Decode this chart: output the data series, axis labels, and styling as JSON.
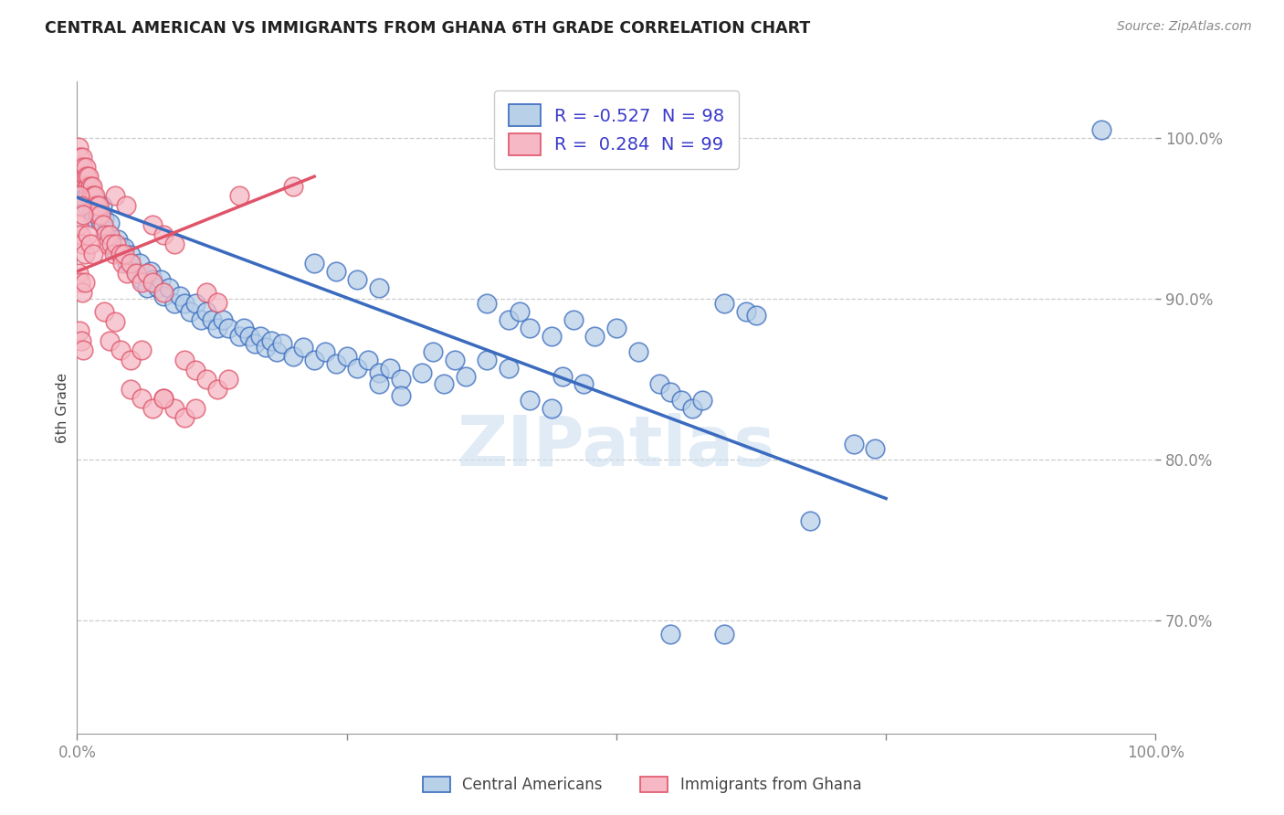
{
  "title": "CENTRAL AMERICAN VS IMMIGRANTS FROM GHANA 6TH GRADE CORRELATION CHART",
  "source": "Source: ZipAtlas.com",
  "ylabel": "6th Grade",
  "xmin": 0.0,
  "xmax": 1.0,
  "ymin": 0.63,
  "ymax": 1.035,
  "yticks": [
    0.7,
    0.8,
    0.9,
    1.0
  ],
  "ytick_labels": [
    "70.0%",
    "80.0%",
    "90.0%",
    "100.0%"
  ],
  "xticks": [
    0.0,
    0.25,
    0.5,
    0.75,
    1.0
  ],
  "xtick_labels": [
    "0.0%",
    "",
    "",
    "",
    "100.0%"
  ],
  "legend_r_blue": "-0.527",
  "legend_n_blue": "98",
  "legend_r_pink": "0.284",
  "legend_n_pink": "99",
  "blue_color": "#b8d0e8",
  "pink_color": "#f5b8c4",
  "trendline_blue": "#3a6bbf",
  "trendline_pink": "#e0546a",
  "watermark": "ZIPatlas",
  "blue_scatter": [
    [
      0.002,
      0.978
    ],
    [
      0.004,
      0.972
    ],
    [
      0.005,
      0.968
    ],
    [
      0.007,
      0.963
    ],
    [
      0.009,
      0.958
    ],
    [
      0.01,
      0.965
    ],
    [
      0.012,
      0.96
    ],
    [
      0.014,
      0.955
    ],
    [
      0.015,
      0.95
    ],
    [
      0.017,
      0.962
    ],
    [
      0.018,
      0.957
    ],
    [
      0.02,
      0.952
    ],
    [
      0.022,
      0.948
    ],
    [
      0.023,
      0.958
    ],
    [
      0.025,
      0.95
    ],
    [
      0.028,
      0.942
    ],
    [
      0.03,
      0.947
    ],
    [
      0.032,
      0.937
    ],
    [
      0.035,
      0.93
    ],
    [
      0.038,
      0.937
    ],
    [
      0.04,
      0.932
    ],
    [
      0.042,
      0.927
    ],
    [
      0.044,
      0.932
    ],
    [
      0.046,
      0.922
    ],
    [
      0.05,
      0.927
    ],
    [
      0.055,
      0.917
    ],
    [
      0.058,
      0.922
    ],
    [
      0.06,
      0.912
    ],
    [
      0.065,
      0.907
    ],
    [
      0.068,
      0.917
    ],
    [
      0.07,
      0.912
    ],
    [
      0.075,
      0.907
    ],
    [
      0.078,
      0.912
    ],
    [
      0.08,
      0.902
    ],
    [
      0.085,
      0.907
    ],
    [
      0.09,
      0.897
    ],
    [
      0.095,
      0.902
    ],
    [
      0.1,
      0.897
    ],
    [
      0.105,
      0.892
    ],
    [
      0.11,
      0.897
    ],
    [
      0.115,
      0.887
    ],
    [
      0.12,
      0.892
    ],
    [
      0.125,
      0.887
    ],
    [
      0.13,
      0.882
    ],
    [
      0.135,
      0.887
    ],
    [
      0.14,
      0.882
    ],
    [
      0.15,
      0.877
    ],
    [
      0.155,
      0.882
    ],
    [
      0.16,
      0.877
    ],
    [
      0.165,
      0.872
    ],
    [
      0.17,
      0.877
    ],
    [
      0.175,
      0.87
    ],
    [
      0.18,
      0.874
    ],
    [
      0.185,
      0.867
    ],
    [
      0.19,
      0.872
    ],
    [
      0.2,
      0.864
    ],
    [
      0.21,
      0.87
    ],
    [
      0.22,
      0.862
    ],
    [
      0.23,
      0.867
    ],
    [
      0.24,
      0.86
    ],
    [
      0.25,
      0.864
    ],
    [
      0.26,
      0.857
    ],
    [
      0.27,
      0.862
    ],
    [
      0.28,
      0.854
    ],
    [
      0.29,
      0.857
    ],
    [
      0.3,
      0.85
    ],
    [
      0.32,
      0.854
    ],
    [
      0.34,
      0.847
    ],
    [
      0.36,
      0.852
    ],
    [
      0.38,
      0.897
    ],
    [
      0.4,
      0.887
    ],
    [
      0.41,
      0.892
    ],
    [
      0.42,
      0.882
    ],
    [
      0.44,
      0.877
    ],
    [
      0.46,
      0.887
    ],
    [
      0.48,
      0.877
    ],
    [
      0.5,
      0.882
    ],
    [
      0.52,
      0.867
    ],
    [
      0.54,
      0.847
    ],
    [
      0.55,
      0.842
    ],
    [
      0.56,
      0.837
    ],
    [
      0.57,
      0.832
    ],
    [
      0.58,
      0.837
    ],
    [
      0.6,
      0.897
    ],
    [
      0.62,
      0.892
    ],
    [
      0.63,
      0.89
    ],
    [
      0.38,
      0.862
    ],
    [
      0.4,
      0.857
    ],
    [
      0.45,
      0.852
    ],
    [
      0.47,
      0.847
    ],
    [
      0.42,
      0.837
    ],
    [
      0.44,
      0.832
    ],
    [
      0.33,
      0.867
    ],
    [
      0.35,
      0.862
    ],
    [
      0.28,
      0.847
    ],
    [
      0.3,
      0.84
    ],
    [
      0.22,
      0.922
    ],
    [
      0.24,
      0.917
    ],
    [
      0.26,
      0.912
    ],
    [
      0.28,
      0.907
    ],
    [
      0.55,
      0.692
    ],
    [
      0.6,
      0.692
    ],
    [
      0.68,
      0.762
    ],
    [
      0.72,
      0.81
    ],
    [
      0.74,
      0.807
    ],
    [
      0.95,
      1.005
    ]
  ],
  "pink_scatter": [
    [
      0.001,
      0.994
    ],
    [
      0.002,
      0.988
    ],
    [
      0.003,
      0.982
    ],
    [
      0.004,
      0.976
    ],
    [
      0.005,
      0.988
    ],
    [
      0.006,
      0.982
    ],
    [
      0.007,
      0.976
    ],
    [
      0.008,
      0.982
    ],
    [
      0.009,
      0.976
    ],
    [
      0.01,
      0.97
    ],
    [
      0.011,
      0.976
    ],
    [
      0.012,
      0.97
    ],
    [
      0.013,
      0.964
    ],
    [
      0.014,
      0.97
    ],
    [
      0.015,
      0.964
    ],
    [
      0.016,
      0.958
    ],
    [
      0.017,
      0.964
    ],
    [
      0.018,
      0.958
    ],
    [
      0.019,
      0.952
    ],
    [
      0.02,
      0.958
    ],
    [
      0.022,
      0.952
    ],
    [
      0.024,
      0.946
    ],
    [
      0.026,
      0.94
    ],
    [
      0.028,
      0.934
    ],
    [
      0.03,
      0.94
    ],
    [
      0.032,
      0.934
    ],
    [
      0.034,
      0.928
    ],
    [
      0.036,
      0.934
    ],
    [
      0.001,
      0.946
    ],
    [
      0.003,
      0.94
    ],
    [
      0.005,
      0.934
    ],
    [
      0.007,
      0.928
    ],
    [
      0.001,
      0.916
    ],
    [
      0.003,
      0.91
    ],
    [
      0.005,
      0.904
    ],
    [
      0.007,
      0.91
    ],
    [
      0.002,
      0.964
    ],
    [
      0.004,
      0.958
    ],
    [
      0.006,
      0.952
    ],
    [
      0.01,
      0.94
    ],
    [
      0.012,
      0.934
    ],
    [
      0.015,
      0.928
    ],
    [
      0.035,
      0.964
    ],
    [
      0.045,
      0.958
    ],
    [
      0.07,
      0.946
    ],
    [
      0.08,
      0.94
    ],
    [
      0.09,
      0.934
    ],
    [
      0.04,
      0.928
    ],
    [
      0.042,
      0.922
    ],
    [
      0.044,
      0.928
    ],
    [
      0.046,
      0.916
    ],
    [
      0.05,
      0.922
    ],
    [
      0.055,
      0.916
    ],
    [
      0.06,
      0.91
    ],
    [
      0.065,
      0.916
    ],
    [
      0.07,
      0.91
    ],
    [
      0.08,
      0.904
    ],
    [
      0.1,
      0.862
    ],
    [
      0.11,
      0.856
    ],
    [
      0.12,
      0.85
    ],
    [
      0.13,
      0.844
    ],
    [
      0.14,
      0.85
    ],
    [
      0.08,
      0.838
    ],
    [
      0.09,
      0.832
    ],
    [
      0.1,
      0.826
    ],
    [
      0.11,
      0.832
    ],
    [
      0.05,
      0.844
    ],
    [
      0.06,
      0.838
    ],
    [
      0.07,
      0.832
    ],
    [
      0.08,
      0.838
    ],
    [
      0.12,
      0.904
    ],
    [
      0.13,
      0.898
    ],
    [
      0.15,
      0.964
    ],
    [
      0.2,
      0.97
    ],
    [
      0.03,
      0.874
    ],
    [
      0.04,
      0.868
    ],
    [
      0.05,
      0.862
    ],
    [
      0.06,
      0.868
    ],
    [
      0.025,
      0.892
    ],
    [
      0.035,
      0.886
    ],
    [
      0.002,
      0.88
    ],
    [
      0.004,
      0.874
    ],
    [
      0.006,
      0.868
    ]
  ],
  "blue_trendline_x": [
    0.0,
    0.75
  ],
  "blue_trendline_y": [
    0.963,
    0.776
  ],
  "pink_trendline_x": [
    0.0,
    0.22
  ],
  "pink_trendline_y": [
    0.917,
    0.976
  ]
}
